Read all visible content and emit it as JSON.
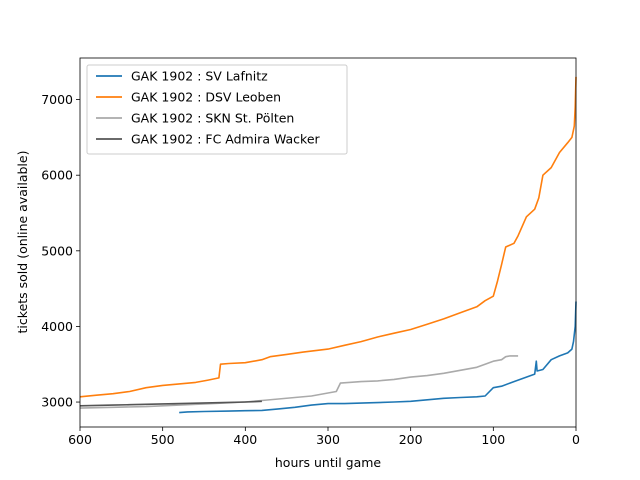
{
  "chart_data": {
    "type": "line",
    "title": "",
    "xlabel": "hours until game",
    "ylabel": "tickets sold (online available)",
    "xlim": [
      600,
      0
    ],
    "ylim": [
      2670,
      7550
    ],
    "x_inverted": true,
    "xticks": [
      600,
      500,
      400,
      300,
      200,
      100,
      0
    ],
    "yticks": [
      3000,
      4000,
      5000,
      6000,
      7000
    ],
    "grid": false,
    "legend_position": "upper-left",
    "series": [
      {
        "name": "GAK 1902 : SV Lafnitz",
        "color": "#1f77b4",
        "points": [
          [
            480,
            2860
          ],
          [
            470,
            2870
          ],
          [
            450,
            2875
          ],
          [
            420,
            2880
          ],
          [
            400,
            2885
          ],
          [
            380,
            2890
          ],
          [
            360,
            2910
          ],
          [
            340,
            2930
          ],
          [
            320,
            2960
          ],
          [
            300,
            2980
          ],
          [
            280,
            2980
          ],
          [
            250,
            2990
          ],
          [
            220,
            3000
          ],
          [
            200,
            3010
          ],
          [
            180,
            3030
          ],
          [
            160,
            3050
          ],
          [
            140,
            3060
          ],
          [
            120,
            3070
          ],
          [
            110,
            3080
          ],
          [
            100,
            3190
          ],
          [
            90,
            3210
          ],
          [
            80,
            3250
          ],
          [
            70,
            3290
          ],
          [
            60,
            3330
          ],
          [
            50,
            3370
          ],
          [
            48,
            3540
          ],
          [
            47,
            3410
          ],
          [
            40,
            3430
          ],
          [
            30,
            3560
          ],
          [
            20,
            3610
          ],
          [
            10,
            3650
          ],
          [
            5,
            3700
          ],
          [
            3,
            3800
          ],
          [
            1,
            4000
          ],
          [
            0,
            4330
          ]
        ]
      },
      {
        "name": "GAK 1902 : DSV Leoben",
        "color": "#ff7f0e",
        "points": [
          [
            600,
            3070
          ],
          [
            580,
            3090
          ],
          [
            560,
            3110
          ],
          [
            540,
            3140
          ],
          [
            520,
            3190
          ],
          [
            500,
            3220
          ],
          [
            480,
            3240
          ],
          [
            460,
            3260
          ],
          [
            445,
            3290
          ],
          [
            432,
            3320
          ],
          [
            430,
            3500
          ],
          [
            420,
            3510
          ],
          [
            400,
            3520
          ],
          [
            380,
            3560
          ],
          [
            370,
            3600
          ],
          [
            350,
            3630
          ],
          [
            330,
            3660
          ],
          [
            300,
            3700
          ],
          [
            280,
            3750
          ],
          [
            260,
            3800
          ],
          [
            240,
            3860
          ],
          [
            220,
            3910
          ],
          [
            200,
            3960
          ],
          [
            180,
            4030
          ],
          [
            160,
            4100
          ],
          [
            140,
            4180
          ],
          [
            120,
            4260
          ],
          [
            110,
            4340
          ],
          [
            100,
            4400
          ],
          [
            95,
            4600
          ],
          [
            90,
            4820
          ],
          [
            85,
            5050
          ],
          [
            75,
            5100
          ],
          [
            70,
            5200
          ],
          [
            60,
            5450
          ],
          [
            50,
            5550
          ],
          [
            45,
            5700
          ],
          [
            40,
            6000
          ],
          [
            30,
            6100
          ],
          [
            20,
            6300
          ],
          [
            10,
            6430
          ],
          [
            5,
            6500
          ],
          [
            2,
            6650
          ],
          [
            1,
            6900
          ],
          [
            0,
            7300
          ]
        ]
      },
      {
        "name": "GAK 1902 : SKN St. Pölten",
        "color": "#aaaaaa",
        "points": [
          [
            600,
            2920
          ],
          [
            560,
            2930
          ],
          [
            520,
            2940
          ],
          [
            480,
            2960
          ],
          [
            440,
            2980
          ],
          [
            400,
            3000
          ],
          [
            380,
            3020
          ],
          [
            360,
            3040
          ],
          [
            340,
            3060
          ],
          [
            320,
            3080
          ],
          [
            300,
            3120
          ],
          [
            290,
            3140
          ],
          [
            285,
            3250
          ],
          [
            260,
            3270
          ],
          [
            240,
            3280
          ],
          [
            220,
            3300
          ],
          [
            200,
            3330
          ],
          [
            180,
            3350
          ],
          [
            160,
            3380
          ],
          [
            140,
            3420
          ],
          [
            120,
            3460
          ],
          [
            110,
            3500
          ],
          [
            100,
            3540
          ],
          [
            90,
            3560
          ],
          [
            85,
            3600
          ],
          [
            80,
            3610
          ],
          [
            70,
            3610
          ]
        ]
      },
      {
        "name": "GAK 1902 : FC Admira Wacker",
        "color": "#555555",
        "points": [
          [
            600,
            2950
          ],
          [
            580,
            2955
          ],
          [
            560,
            2960
          ],
          [
            540,
            2965
          ],
          [
            520,
            2970
          ],
          [
            500,
            2975
          ],
          [
            480,
            2980
          ],
          [
            460,
            2985
          ],
          [
            440,
            2990
          ],
          [
            420,
            2995
          ],
          [
            400,
            3000
          ],
          [
            390,
            3005
          ],
          [
            380,
            3010
          ]
        ]
      }
    ]
  }
}
